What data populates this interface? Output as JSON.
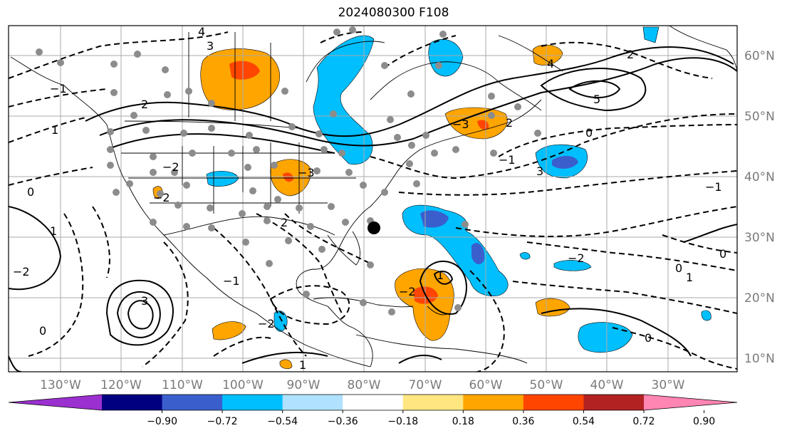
{
  "title": "2024080300 F108",
  "lon_labels": [
    "130°W",
    "120°W",
    "110°W",
    "100°W",
    "90°W",
    "80°W",
    "70°W",
    "60°W",
    "50°W",
    "40°W",
    "30°W"
  ],
  "lat_labels": [
    "60°N",
    "50°N",
    "40°N",
    "30°N",
    "20°N",
    "10°N"
  ],
  "colorbar": {
    "colors": [
      "#9b30d0",
      "#000080",
      "#3a5fcd",
      "#00bfff",
      "#b0e2ff",
      "#ffffff",
      "#ffe680",
      "#ffa500",
      "#ff4500",
      "#b22222",
      "#ff85b3"
    ],
    "tick_labels": [
      "−0.90",
      "−0.72",
      "−0.54",
      "−0.36",
      "−0.18",
      "0.18",
      "0.36",
      "0.54",
      "0.72",
      "0.90"
    ]
  },
  "contour_labels": [
    "4",
    "3",
    "2",
    "1",
    "0",
    "−1",
    "−2",
    "3",
    "4",
    "5",
    "0",
    "1",
    "2",
    "2",
    "−2",
    "0",
    "3",
    "1",
    "−2",
    "−3",
    "2",
    "−1",
    "−2",
    "0",
    "1",
    "−1",
    "−3",
    "−2",
    "1",
    "0",
    "0",
    "−1",
    "−2"
  ],
  "colors": {
    "frame": "#000000",
    "grid": "#aaaaaa",
    "coast": "#000000",
    "dot": "#8c8c8c",
    "marker": "#000000"
  }
}
